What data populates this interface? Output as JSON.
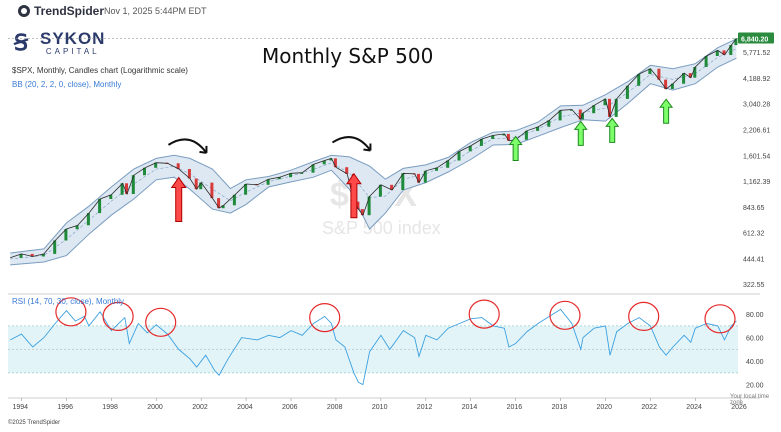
{
  "header": {
    "brand": "TrendSpider",
    "timestamp": "Nov 1, 2025 5:44PM EDT",
    "logo_name": "SYKON",
    "logo_sub": "CAPITAL",
    "copyright": "©2025 TrendSpider",
    "timezone": "Your local time zone"
  },
  "chart_data": {
    "type": "line",
    "title": "Monthly S&P 500",
    "symbol_line": "$SPX, Monthly, Candles chart (Logarithmic scale)",
    "indicator_line": "BB (20, 2, 2, 0, close), Monthly",
    "rsi_line": "RSI (14, 70, 30, close), Monthly",
    "watermark_symbol": "$SPX",
    "watermark_name": "S&P 500 index",
    "scale": "log",
    "last_price_label": "6,840.20",
    "last_price": 6840.2,
    "x_ticks": [
      "1994",
      "1996",
      "1998",
      "2000",
      "2002",
      "2004",
      "2006",
      "2008",
      "2010",
      "2012",
      "2014",
      "2016",
      "2018",
      "2020",
      "2022",
      "2024",
      "2026"
    ],
    "price_ticks": [
      "5,771.52",
      "4,188.92",
      "3,040.28",
      "2,206.61",
      "1,601.54",
      "1,162.39",
      "843.65",
      "612.32",
      "444.41",
      "322.55"
    ],
    "price_tick_values": [
      5771.52,
      4188.92,
      3040.28,
      2206.61,
      1601.54,
      1162.39,
      843.65,
      612.32,
      444.41,
      322.55
    ],
    "price_range": [
      300,
      7600
    ],
    "rsi_ticks": [
      "80.00",
      "60.00",
      "40.00",
      "20.00"
    ],
    "rsi_tick_values": [
      80,
      60,
      40,
      20
    ],
    "rsi_range": [
      12,
      92
    ],
    "rsi_band": [
      30,
      70
    ],
    "x_range": [
      1993.4,
      2025.9
    ],
    "price_series": [
      {
        "t": 1993.5,
        "v": 448
      },
      {
        "t": 1994.0,
        "v": 470
      },
      {
        "t": 1994.5,
        "v": 455
      },
      {
        "t": 1995.0,
        "v": 470
      },
      {
        "t": 1995.5,
        "v": 555
      },
      {
        "t": 1996.0,
        "v": 640
      },
      {
        "t": 1996.5,
        "v": 670
      },
      {
        "t": 1997.0,
        "v": 780
      },
      {
        "t": 1997.5,
        "v": 930
      },
      {
        "t": 1998.0,
        "v": 980
      },
      {
        "t": 1998.5,
        "v": 1130
      },
      {
        "t": 1998.7,
        "v": 990
      },
      {
        "t": 1999.0,
        "v": 1250
      },
      {
        "t": 1999.5,
        "v": 1370
      },
      {
        "t": 2000.0,
        "v": 1460
      },
      {
        "t": 2000.5,
        "v": 1450
      },
      {
        "t": 2001.0,
        "v": 1350
      },
      {
        "t": 2001.5,
        "v": 1200
      },
      {
        "t": 2001.8,
        "v": 1050
      },
      {
        "t": 2002.0,
        "v": 1140
      },
      {
        "t": 2002.5,
        "v": 940
      },
      {
        "t": 2002.8,
        "v": 830
      },
      {
        "t": 2003.0,
        "v": 860
      },
      {
        "t": 2003.5,
        "v": 980
      },
      {
        "t": 2004.0,
        "v": 1120
      },
      {
        "t": 2004.5,
        "v": 1110
      },
      {
        "t": 2005.0,
        "v": 1190
      },
      {
        "t": 2005.5,
        "v": 1220
      },
      {
        "t": 2006.0,
        "v": 1280
      },
      {
        "t": 2006.5,
        "v": 1290
      },
      {
        "t": 2007.0,
        "v": 1430
      },
      {
        "t": 2007.5,
        "v": 1500
      },
      {
        "t": 2007.8,
        "v": 1540
      },
      {
        "t": 2008.0,
        "v": 1380
      },
      {
        "t": 2008.5,
        "v": 1270
      },
      {
        "t": 2008.8,
        "v": 900
      },
      {
        "t": 2009.0,
        "v": 820
      },
      {
        "t": 2009.2,
        "v": 760
      },
      {
        "t": 2009.5,
        "v": 960
      },
      {
        "t": 2010.0,
        "v": 1110
      },
      {
        "t": 2010.5,
        "v": 1040
      },
      {
        "t": 2011.0,
        "v": 1280
      },
      {
        "t": 2011.5,
        "v": 1270
      },
      {
        "t": 2011.7,
        "v": 1140
      },
      {
        "t": 2012.0,
        "v": 1320
      },
      {
        "t": 2012.5,
        "v": 1370
      },
      {
        "t": 2013.0,
        "v": 1500
      },
      {
        "t": 2013.5,
        "v": 1680
      },
      {
        "t": 2014.0,
        "v": 1800
      },
      {
        "t": 2014.5,
        "v": 1960
      },
      {
        "t": 2015.0,
        "v": 2050
      },
      {
        "t": 2015.5,
        "v": 2090
      },
      {
        "t": 2015.7,
        "v": 1920
      },
      {
        "t": 2016.0,
        "v": 1940
      },
      {
        "t": 2016.5,
        "v": 2170
      },
      {
        "t": 2017.0,
        "v": 2280
      },
      {
        "t": 2017.5,
        "v": 2470
      },
      {
        "t": 2018.0,
        "v": 2800
      },
      {
        "t": 2018.5,
        "v": 2830
      },
      {
        "t": 2018.9,
        "v": 2500
      },
      {
        "t": 2019.0,
        "v": 2700
      },
      {
        "t": 2019.5,
        "v": 2980
      },
      {
        "t": 2020.0,
        "v": 3230
      },
      {
        "t": 2020.2,
        "v": 2580
      },
      {
        "t": 2020.5,
        "v": 3230
      },
      {
        "t": 2021.0,
        "v": 3800
      },
      {
        "t": 2021.5,
        "v": 4400
      },
      {
        "t": 2022.0,
        "v": 4700
      },
      {
        "t": 2022.4,
        "v": 4100
      },
      {
        "t": 2022.7,
        "v": 3650
      },
      {
        "t": 2023.0,
        "v": 3900
      },
      {
        "t": 2023.5,
        "v": 4450
      },
      {
        "t": 2023.8,
        "v": 4200
      },
      {
        "t": 2024.0,
        "v": 4800
      },
      {
        "t": 2024.5,
        "v": 5500
      },
      {
        "t": 2025.0,
        "v": 5900
      },
      {
        "t": 2025.3,
        "v": 5570
      },
      {
        "t": 2025.6,
        "v": 6300
      },
      {
        "t": 2025.83,
        "v": 6840
      }
    ],
    "bb_upper": [
      {
        "t": 1993.5,
        "v": 475
      },
      {
        "t": 1995.0,
        "v": 500
      },
      {
        "t": 1996.0,
        "v": 690
      },
      {
        "t": 1997.0,
        "v": 850
      },
      {
        "t": 1998.0,
        "v": 1080
      },
      {
        "t": 1999.0,
        "v": 1350
      },
      {
        "t": 2000.0,
        "v": 1540
      },
      {
        "t": 2000.8,
        "v": 1600
      },
      {
        "t": 2001.5,
        "v": 1540
      },
      {
        "t": 2002.5,
        "v": 1350
      },
      {
        "t": 2003.3,
        "v": 1060
      },
      {
        "t": 2004.0,
        "v": 1180
      },
      {
        "t": 2005.0,
        "v": 1230
      },
      {
        "t": 2006.0,
        "v": 1330
      },
      {
        "t": 2007.0,
        "v": 1480
      },
      {
        "t": 2007.8,
        "v": 1600
      },
      {
        "t": 2008.6,
        "v": 1570
      },
      {
        "t": 2009.5,
        "v": 1400
      },
      {
        "t": 2010.2,
        "v": 1190
      },
      {
        "t": 2011.0,
        "v": 1360
      },
      {
        "t": 2012.0,
        "v": 1420
      },
      {
        "t": 2013.0,
        "v": 1560
      },
      {
        "t": 2014.0,
        "v": 1880
      },
      {
        "t": 2015.0,
        "v": 2130
      },
      {
        "t": 2016.0,
        "v": 2170
      },
      {
        "t": 2017.0,
        "v": 2420
      },
      {
        "t": 2018.0,
        "v": 2960
      },
      {
        "t": 2019.0,
        "v": 2980
      },
      {
        "t": 2020.0,
        "v": 3400
      },
      {
        "t": 2021.0,
        "v": 4000
      },
      {
        "t": 2022.0,
        "v": 4900
      },
      {
        "t": 2023.0,
        "v": 4700
      },
      {
        "t": 2024.0,
        "v": 5000
      },
      {
        "t": 2025.0,
        "v": 6100
      },
      {
        "t": 2025.83,
        "v": 6800
      }
    ],
    "bb_lower": [
      {
        "t": 1993.5,
        "v": 410
      },
      {
        "t": 1995.0,
        "v": 425
      },
      {
        "t": 1996.0,
        "v": 460
      },
      {
        "t": 1997.0,
        "v": 600
      },
      {
        "t": 1998.0,
        "v": 760
      },
      {
        "t": 1999.0,
        "v": 930
      },
      {
        "t": 2000.0,
        "v": 1180
      },
      {
        "t": 2000.8,
        "v": 1220
      },
      {
        "t": 2001.5,
        "v": 1050
      },
      {
        "t": 2002.5,
        "v": 820
      },
      {
        "t": 2003.3,
        "v": 780
      },
      {
        "t": 2004.0,
        "v": 870
      },
      {
        "t": 2005.0,
        "v": 1080
      },
      {
        "t": 2006.0,
        "v": 1150
      },
      {
        "t": 2007.0,
        "v": 1220
      },
      {
        "t": 2007.8,
        "v": 1330
      },
      {
        "t": 2008.6,
        "v": 1050
      },
      {
        "t": 2009.5,
        "v": 640
      },
      {
        "t": 2010.2,
        "v": 780
      },
      {
        "t": 2011.0,
        "v": 1040
      },
      {
        "t": 2012.0,
        "v": 1140
      },
      {
        "t": 2013.0,
        "v": 1300
      },
      {
        "t": 2014.0,
        "v": 1520
      },
      {
        "t": 2015.0,
        "v": 1820
      },
      {
        "t": 2016.0,
        "v": 1830
      },
      {
        "t": 2017.0,
        "v": 2030
      },
      {
        "t": 2018.0,
        "v": 2260
      },
      {
        "t": 2019.0,
        "v": 2490
      },
      {
        "t": 2020.0,
        "v": 2450
      },
      {
        "t": 2021.0,
        "v": 3050
      },
      {
        "t": 2022.0,
        "v": 3900
      },
      {
        "t": 2023.0,
        "v": 3600
      },
      {
        "t": 2024.0,
        "v": 3900
      },
      {
        "t": 2025.0,
        "v": 4800
      },
      {
        "t": 2025.83,
        "v": 5350
      }
    ],
    "rsi_series": [
      {
        "t": 1993.5,
        "v": 58
      },
      {
        "t": 1994.0,
        "v": 63
      },
      {
        "t": 1994.5,
        "v": 52
      },
      {
        "t": 1995.0,
        "v": 60
      },
      {
        "t": 1995.5,
        "v": 72
      },
      {
        "t": 1996.0,
        "v": 83
      },
      {
        "t": 1996.4,
        "v": 74
      },
      {
        "t": 1996.8,
        "v": 78
      },
      {
        "t": 1997.0,
        "v": 70
      },
      {
        "t": 1997.5,
        "v": 82
      },
      {
        "t": 1998.0,
        "v": 66
      },
      {
        "t": 1998.6,
        "v": 77
      },
      {
        "t": 1998.8,
        "v": 55
      },
      {
        "t": 1999.2,
        "v": 72
      },
      {
        "t": 1999.6,
        "v": 64
      },
      {
        "t": 2000.0,
        "v": 71
      },
      {
        "t": 2000.5,
        "v": 63
      },
      {
        "t": 2001.0,
        "v": 50
      },
      {
        "t": 2001.5,
        "v": 42
      },
      {
        "t": 2001.8,
        "v": 35
      },
      {
        "t": 2002.2,
        "v": 45
      },
      {
        "t": 2002.6,
        "v": 32
      },
      {
        "t": 2002.8,
        "v": 28
      },
      {
        "t": 2003.2,
        "v": 42
      },
      {
        "t": 2003.8,
        "v": 60
      },
      {
        "t": 2004.5,
        "v": 58
      },
      {
        "t": 2005.0,
        "v": 62
      },
      {
        "t": 2005.5,
        "v": 60
      },
      {
        "t": 2006.0,
        "v": 66
      },
      {
        "t": 2006.5,
        "v": 62
      },
      {
        "t": 2007.0,
        "v": 72
      },
      {
        "t": 2007.5,
        "v": 78
      },
      {
        "t": 2007.8,
        "v": 72
      },
      {
        "t": 2008.0,
        "v": 58
      },
      {
        "t": 2008.4,
        "v": 52
      },
      {
        "t": 2008.8,
        "v": 30
      },
      {
        "t": 2009.0,
        "v": 22
      },
      {
        "t": 2009.2,
        "v": 20
      },
      {
        "t": 2009.5,
        "v": 48
      },
      {
        "t": 2010.0,
        "v": 62
      },
      {
        "t": 2010.4,
        "v": 50
      },
      {
        "t": 2011.0,
        "v": 66
      },
      {
        "t": 2011.5,
        "v": 60
      },
      {
        "t": 2011.7,
        "v": 44
      },
      {
        "t": 2012.0,
        "v": 62
      },
      {
        "t": 2012.5,
        "v": 58
      },
      {
        "t": 2013.0,
        "v": 68
      },
      {
        "t": 2013.5,
        "v": 72
      },
      {
        "t": 2014.0,
        "v": 76
      },
      {
        "t": 2014.5,
        "v": 77
      },
      {
        "t": 2015.0,
        "v": 70
      },
      {
        "t": 2015.5,
        "v": 68
      },
      {
        "t": 2015.7,
        "v": 52
      },
      {
        "t": 2016.0,
        "v": 55
      },
      {
        "t": 2016.5,
        "v": 65
      },
      {
        "t": 2017.0,
        "v": 72
      },
      {
        "t": 2017.5,
        "v": 78
      },
      {
        "t": 2018.0,
        "v": 84
      },
      {
        "t": 2018.5,
        "v": 72
      },
      {
        "t": 2018.9,
        "v": 50
      },
      {
        "t": 2019.0,
        "v": 60
      },
      {
        "t": 2019.5,
        "v": 68
      },
      {
        "t": 2020.0,
        "v": 70
      },
      {
        "t": 2020.2,
        "v": 45
      },
      {
        "t": 2020.5,
        "v": 65
      },
      {
        "t": 2021.0,
        "v": 72
      },
      {
        "t": 2021.5,
        "v": 77
      },
      {
        "t": 2022.0,
        "v": 70
      },
      {
        "t": 2022.4,
        "v": 52
      },
      {
        "t": 2022.7,
        "v": 45
      },
      {
        "t": 2023.0,
        "v": 52
      },
      {
        "t": 2023.5,
        "v": 62
      },
      {
        "t": 2023.8,
        "v": 56
      },
      {
        "t": 2024.0,
        "v": 68
      },
      {
        "t": 2024.5,
        "v": 72
      },
      {
        "t": 2025.0,
        "v": 70
      },
      {
        "t": 2025.3,
        "v": 58
      },
      {
        "t": 2025.6,
        "v": 70
      },
      {
        "t": 2025.83,
        "v": 74
      }
    ],
    "annotations": {
      "red_arrows": [
        {
          "t": 2001.0,
          "v": 1020
        },
        {
          "t": 2008.8,
          "v": 1070
        }
      ],
      "green_arrows": [
        {
          "t": 2016.0,
          "v": 1700
        },
        {
          "t": 2018.9,
          "v": 2050
        },
        {
          "t": 2020.3,
          "v": 2130
        },
        {
          "t": 2022.7,
          "v": 2700
        }
      ],
      "curved_arrows": [
        {
          "t": 2000.9,
          "v": 1650
        },
        {
          "t": 2008.2,
          "v": 1700
        }
      ],
      "rsi_circles": [
        {
          "t": 1996.2,
          "v": 82
        },
        {
          "t": 1998.3,
          "v": 78
        },
        {
          "t": 2000.2,
          "v": 73
        },
        {
          "t": 2007.5,
          "v": 77
        },
        {
          "t": 2014.6,
          "v": 80
        },
        {
          "t": 2018.2,
          "v": 79
        },
        {
          "t": 2021.7,
          "v": 78
        },
        {
          "t": 2025.1,
          "v": 76
        }
      ]
    },
    "colors": {
      "price": "#2a2a2a",
      "bb": "#7a9cc0",
      "bb_fill": "#dde8f2",
      "rsi": "#3aa0e0",
      "rsi_band": "#e3f4f8",
      "red": "#e52a2a",
      "green": "#33cc33"
    }
  }
}
